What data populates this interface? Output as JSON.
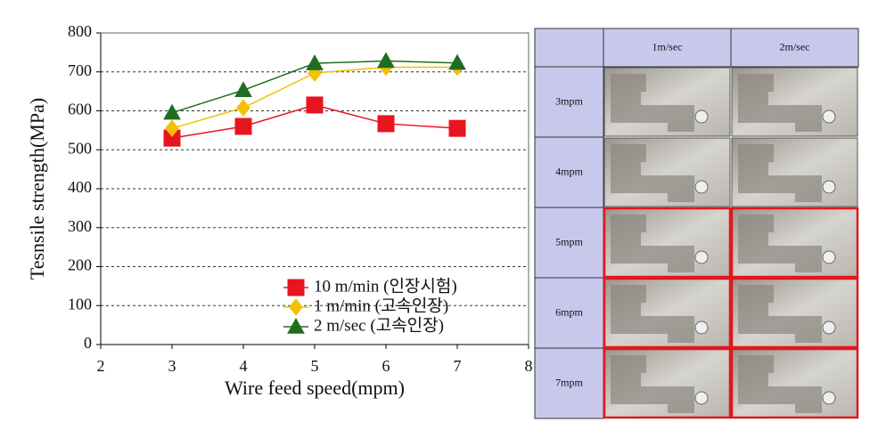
{
  "chart_data": {
    "type": "line",
    "x_label": "Wire feed speed(mpm)",
    "y_label": "Tesnsile strength(MPa)",
    "x": [
      3,
      4,
      5,
      6,
      7
    ],
    "series": [
      {
        "name": "10 m/min (인장시험)",
        "color": "#e8141e",
        "marker": "square",
        "values": [
          530,
          560,
          615,
          567,
          555
        ]
      },
      {
        "name": "1 m/min (고속인장)",
        "color": "#f5c000",
        "marker": "diamond",
        "values": [
          555,
          608,
          697,
          712,
          712
        ]
      },
      {
        "name": "2 m/sec (고속인장)",
        "color": "#1e6e1e",
        "marker": "triangle",
        "values": [
          595,
          653,
          722,
          728,
          723
        ]
      }
    ],
    "xlim": [
      2,
      8
    ],
    "xticks": [
      2,
      3,
      4,
      5,
      6,
      7,
      8
    ],
    "ylim": [
      0,
      800
    ],
    "yticks": [
      0,
      100,
      200,
      300,
      400,
      500,
      600,
      700,
      800
    ],
    "grid": true,
    "legend": "lower right"
  },
  "photo_table": {
    "columns": [
      "1m/sec",
      "2m/sec"
    ],
    "rows": [
      {
        "label": "3mpm",
        "highlight": false
      },
      {
        "label": "4mpm",
        "highlight": false
      },
      {
        "label": "5mpm",
        "highlight": true
      },
      {
        "label": "6mpm",
        "highlight": true
      },
      {
        "label": "7mpm",
        "highlight": true
      }
    ]
  }
}
